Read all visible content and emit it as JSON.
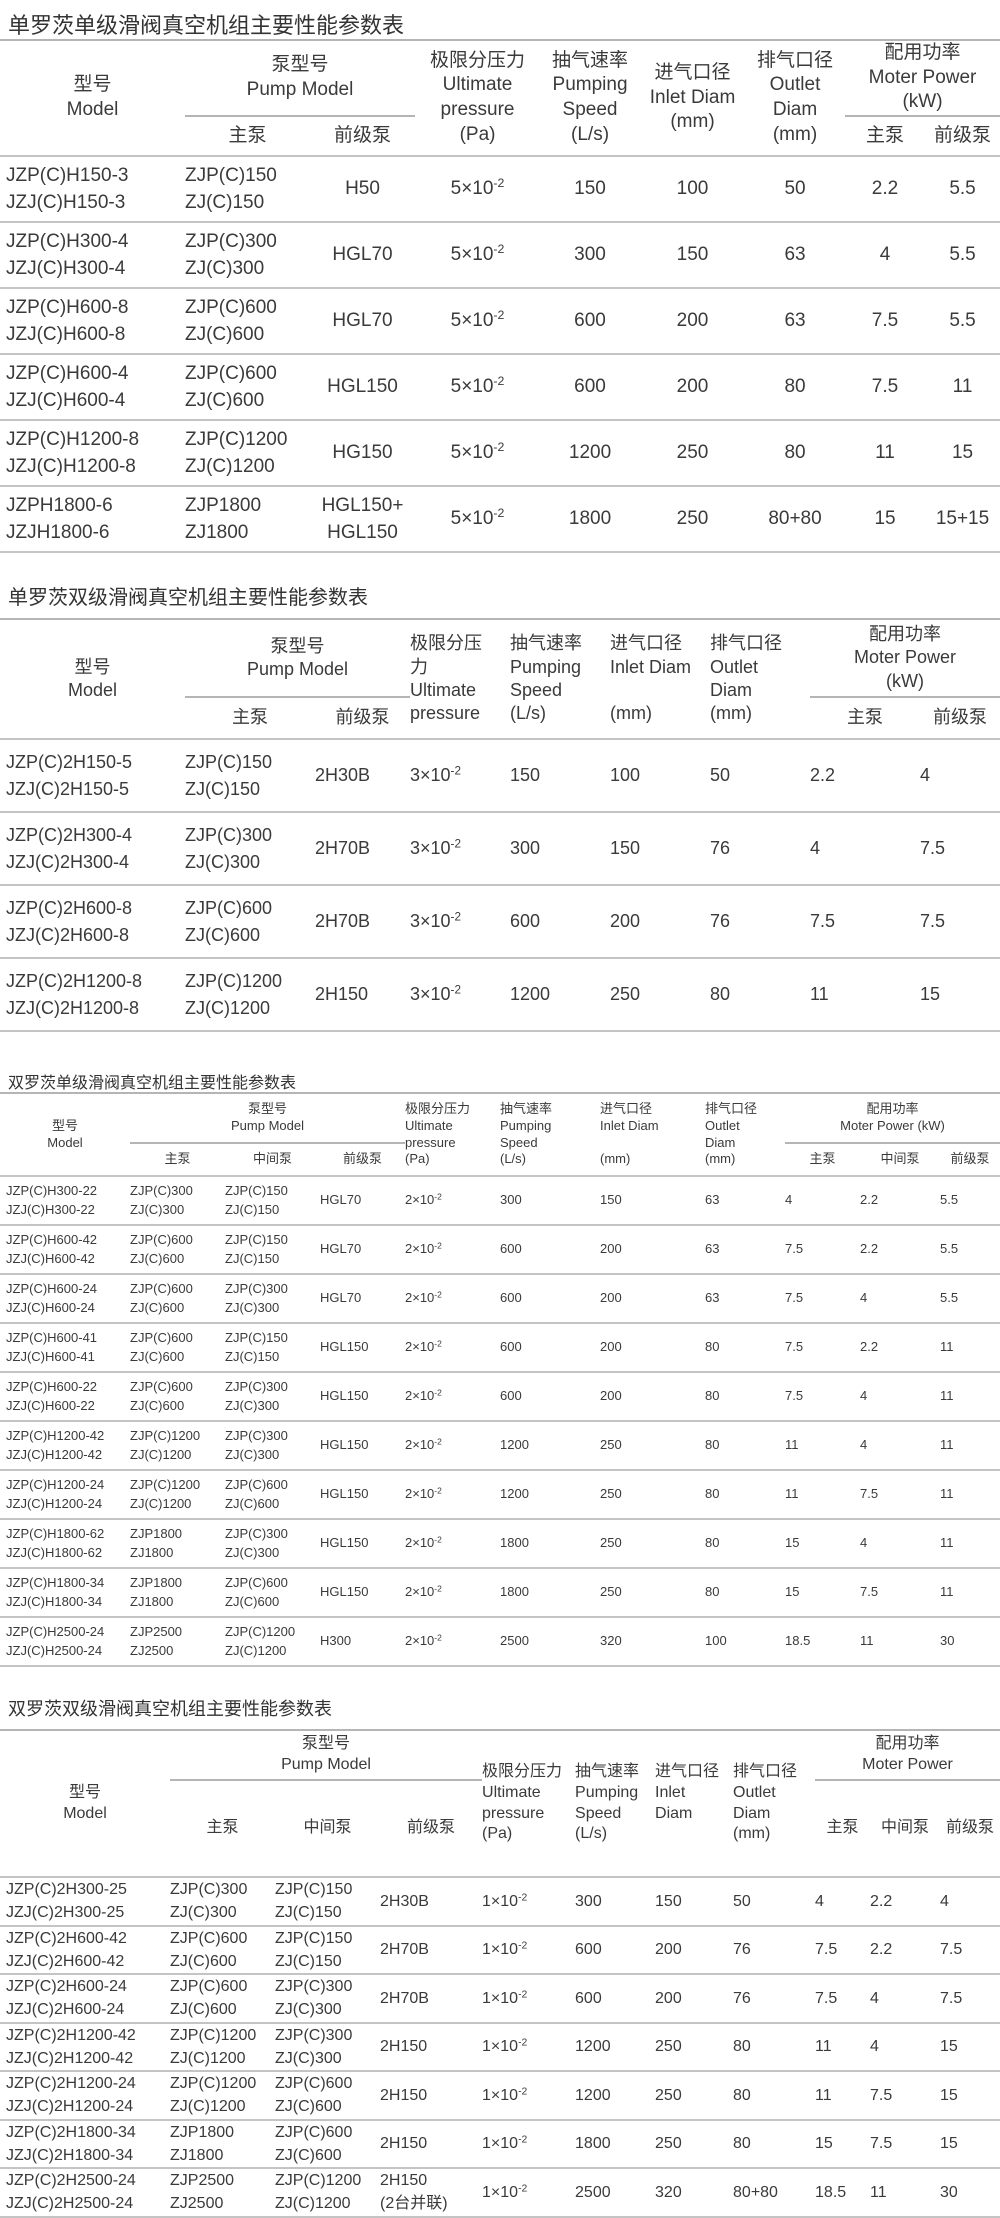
{
  "tables": [
    {
      "title": "单罗茨单级滑阀真空机组主要性能参数表",
      "header": {
        "model": [
          "型号",
          "Model"
        ],
        "pump_model": [
          "泵型号",
          "Pump Model"
        ],
        "pump_sub": [
          "主泵",
          "前级泵"
        ],
        "pressure": [
          "极限分压力",
          "Ultimate",
          "pressure",
          "(Pa)"
        ],
        "speed": [
          "抽气速率",
          "Pumping",
          "Speed",
          "(L/s)"
        ],
        "inlet": [
          "进气口径",
          "Inlet Diam",
          "(mm)"
        ],
        "outlet": [
          "排气口径",
          "Outlet",
          "Diam",
          "(mm)"
        ],
        "power": [
          "配用功率",
          "Moter Power",
          "(kW)"
        ],
        "power_sub": [
          "主泵",
          "前级泵"
        ]
      },
      "rows": [
        [
          [
            "JZP(C)H150-3",
            "JZJ(C)H150-3"
          ],
          [
            "ZJP(C)150",
            "ZJ(C)150"
          ],
          [
            "H50"
          ],
          {
            "base": "5×10",
            "exp": "-2"
          },
          "150",
          "100",
          "50",
          "2.2",
          "5.5"
        ],
        [
          [
            "JZP(C)H300-4",
            "JZJ(C)H300-4"
          ],
          [
            "ZJP(C)300",
            "ZJ(C)300"
          ],
          [
            "HGL70"
          ],
          {
            "base": "5×10",
            "exp": "-2"
          },
          "300",
          "150",
          "63",
          "4",
          "5.5"
        ],
        [
          [
            "JZP(C)H600-8",
            "JZJ(C)H600-8"
          ],
          [
            "ZJP(C)600",
            "ZJ(C)600"
          ],
          [
            "HGL70"
          ],
          {
            "base": "5×10",
            "exp": "-2"
          },
          "600",
          "200",
          "63",
          "7.5",
          "5.5"
        ],
        [
          [
            "JZP(C)H600-4",
            "JZJ(C)H600-4"
          ],
          [
            "ZJP(C)600",
            "ZJ(C)600"
          ],
          [
            "HGL150"
          ],
          {
            "base": "5×10",
            "exp": "-2"
          },
          "600",
          "200",
          "80",
          "7.5",
          "11"
        ],
        [
          [
            "JZP(C)H1200-8",
            "JZJ(C)H1200-8"
          ],
          [
            "ZJP(C)1200",
            "ZJ(C)1200"
          ],
          [
            "HG150"
          ],
          {
            "base": "5×10",
            "exp": "-2"
          },
          "1200",
          "250",
          "80",
          "11",
          "15"
        ],
        [
          [
            "JZPH1800-6",
            "JZJH1800-6"
          ],
          [
            "ZJP1800",
            "ZJ1800"
          ],
          [
            "HGL150+",
            "HGL150"
          ],
          {
            "base": "5×10",
            "exp": "-2"
          },
          "1800",
          "250",
          "80+80",
          "15",
          "15+15"
        ]
      ]
    },
    {
      "title": "单罗茨双级滑阀真空机组主要性能参数表",
      "header": {
        "model": [
          "型号",
          "Model"
        ],
        "pump_model": [
          "泵型号",
          "Pump Model"
        ],
        "pump_sub": [
          "主泵",
          "前级泵"
        ],
        "pressure": [
          "极限分压",
          "力",
          "Ultimate",
          "pressure"
        ],
        "speed": [
          "抽气速率",
          "Pumping",
          "Speed",
          "(L/s)"
        ],
        "inlet": [
          "进气口径",
          "Inlet Diam",
          "",
          "(mm)"
        ],
        "outlet": [
          "排气口径",
          "Outlet",
          "Diam",
          "(mm)"
        ],
        "power": [
          "配用功率",
          "Moter Power",
          "(kW)"
        ],
        "power_sub": [
          "主泵",
          "前级泵"
        ]
      },
      "rows": [
        [
          [
            "JZP(C)2H150-5",
            "JZJ(C)2H150-5"
          ],
          [
            "ZJP(C)150",
            "ZJ(C)150"
          ],
          [
            "2H30B"
          ],
          {
            "base": "3×10",
            "exp": "-2"
          },
          "150",
          "100",
          "50",
          "2.2",
          "4"
        ],
        [
          [
            "JZP(C)2H300-4",
            "JZJ(C)2H300-4"
          ],
          [
            "ZJP(C)300",
            "ZJ(C)300"
          ],
          [
            "2H70B"
          ],
          {
            "base": "3×10",
            "exp": "-2"
          },
          "300",
          "150",
          "76",
          "4",
          "7.5"
        ],
        [
          [
            "JZP(C)2H600-8",
            "JZJ(C)2H600-8"
          ],
          [
            "ZJP(C)600",
            "ZJ(C)600"
          ],
          [
            "2H70B"
          ],
          {
            "base": "3×10",
            "exp": "-2"
          },
          "600",
          "200",
          "76",
          "7.5",
          "7.5"
        ],
        [
          [
            "JZP(C)2H1200-8",
            "JZJ(C)2H1200-8"
          ],
          [
            "ZJP(C)1200",
            "ZJ(C)1200"
          ],
          [
            "2H150"
          ],
          {
            "base": "3×10",
            "exp": "-2"
          },
          "1200",
          "250",
          "80",
          "11",
          "15"
        ]
      ]
    },
    {
      "title": "双罗茨单级滑阀真空机组主要性能参数表",
      "header": {
        "model": [
          "型号",
          "Model"
        ],
        "pump_model": [
          "泵型号",
          "Pump Model"
        ],
        "pump_sub": [
          "主泵",
          "中间泵",
          "前级泵"
        ],
        "pressure": [
          "极限分压力",
          "Ultimate",
          "pressure",
          "(Pa)"
        ],
        "speed": [
          "抽气速率",
          "Pumping",
          "Speed",
          "(L/s)"
        ],
        "inlet": [
          "进气口径",
          "Inlet Diam",
          "",
          "(mm)"
        ],
        "outlet": [
          "排气口径",
          "Outlet",
          "Diam",
          "(mm)"
        ],
        "power": [
          "配用功率",
          "Moter Power  (kW)"
        ],
        "power_sub": [
          "主泵",
          "中间泵",
          "前级泵"
        ]
      },
      "rows": [
        [
          [
            "JZP(C)H300-22",
            "JZJ(C)H300-22"
          ],
          [
            "ZJP(C)300",
            "ZJ(C)300"
          ],
          [
            "ZJP(C)150",
            "ZJ(C)150"
          ],
          [
            "HGL70"
          ],
          {
            "base": "2×10",
            "exp": "-2"
          },
          "300",
          "150",
          "63",
          "4",
          "2.2",
          "5.5"
        ],
        [
          [
            "JZP(C)H600-42",
            "JZJ(C)H600-42"
          ],
          [
            "ZJP(C)600",
            "ZJ(C)600"
          ],
          [
            "ZJP(C)150",
            "ZJ(C)150"
          ],
          [
            "HGL70"
          ],
          {
            "base": "2×10",
            "exp": "-2"
          },
          "600",
          "200",
          "63",
          "7.5",
          "2.2",
          "5.5"
        ],
        [
          [
            "JZP(C)H600-24",
            "JZJ(C)H600-24"
          ],
          [
            "ZJP(C)600",
            "ZJ(C)600"
          ],
          [
            "ZJP(C)300",
            "ZJ(C)300"
          ],
          [
            "HGL70"
          ],
          {
            "base": "2×10",
            "exp": "-2"
          },
          "600",
          "200",
          "63",
          "7.5",
          "4",
          "5.5"
        ],
        [
          [
            "JZP(C)H600-41",
            "JZJ(C)H600-41"
          ],
          [
            "ZJP(C)600",
            "ZJ(C)600"
          ],
          [
            "ZJP(C)150",
            "ZJ(C)150"
          ],
          [
            "HGL150"
          ],
          {
            "base": "2×10",
            "exp": "-2"
          },
          "600",
          "200",
          "80",
          "7.5",
          "2.2",
          "11"
        ],
        [
          [
            "JZP(C)H600-22",
            "JZJ(C)H600-22"
          ],
          [
            "ZJP(C)600",
            "ZJ(C)600"
          ],
          [
            "ZJP(C)300",
            "ZJ(C)300"
          ],
          [
            "HGL150"
          ],
          {
            "base": "2×10",
            "exp": "-2"
          },
          "600",
          "200",
          "80",
          "7.5",
          "4",
          "11"
        ],
        [
          [
            "JZP(C)H1200-42",
            "JZJ(C)H1200-42"
          ],
          [
            "ZJP(C)1200",
            "ZJ(C)1200"
          ],
          [
            "ZJP(C)300",
            "ZJ(C)300"
          ],
          [
            "HGL150"
          ],
          {
            "base": "2×10",
            "exp": "-2"
          },
          "1200",
          "250",
          "80",
          "11",
          "4",
          "11"
        ],
        [
          [
            "JZP(C)H1200-24",
            "JZJ(C)H1200-24"
          ],
          [
            "ZJP(C)1200",
            "ZJ(C)1200"
          ],
          [
            "ZJP(C)600",
            "ZJ(C)600"
          ],
          [
            "HGL150"
          ],
          {
            "base": "2×10",
            "exp": "-2"
          },
          "1200",
          "250",
          "80",
          "11",
          "7.5",
          "11"
        ],
        [
          [
            "JZP(C)H1800-62",
            "JZJ(C)H1800-62"
          ],
          [
            "ZJP1800",
            "ZJ1800"
          ],
          [
            "ZJP(C)300",
            "ZJ(C)300"
          ],
          [
            "HGL150"
          ],
          {
            "base": "2×10",
            "exp": "-2"
          },
          "1800",
          "250",
          "80",
          "15",
          "4",
          "11"
        ],
        [
          [
            "JZP(C)H1800-34",
            "JZJ(C)H1800-34"
          ],
          [
            "ZJP1800",
            "ZJ1800"
          ],
          [
            "ZJP(C)600",
            "ZJ(C)600"
          ],
          [
            "HGL150"
          ],
          {
            "base": "2×10",
            "exp": "-2"
          },
          "1800",
          "250",
          "80",
          "15",
          "7.5",
          "11"
        ],
        [
          [
            "JZP(C)H2500-24",
            "JZJ(C)H2500-24"
          ],
          [
            "ZJP2500",
            "ZJ2500"
          ],
          [
            "ZJP(C)1200",
            "ZJ(C)1200"
          ],
          [
            "H300"
          ],
          {
            "base": "2×10",
            "exp": "-2"
          },
          "2500",
          "320",
          "100",
          "18.5",
          "11",
          "30"
        ]
      ]
    },
    {
      "title": "双罗茨双级滑阀真空机组主要性能参数表",
      "header": {
        "model": [
          "型号",
          "Model"
        ],
        "pump_model": [
          "泵型号",
          "Pump Model"
        ],
        "pump_sub": [
          "主泵",
          "中间泵",
          "前级泵"
        ],
        "pressure": [
          "极限分压力",
          "Ultimate",
          "pressure",
          "(Pa)"
        ],
        "speed": [
          "抽气速率",
          "Pumping",
          "Speed",
          "(L/s)"
        ],
        "inlet": [
          "进气口径",
          "Inlet",
          "Diam",
          ""
        ],
        "outlet": [
          "排气口径",
          "Outlet",
          "Diam",
          "(mm)"
        ],
        "power": [
          "配用功率",
          "Moter Power"
        ],
        "power_sub": [
          "主泵",
          "中间泵",
          "前级泵"
        ]
      },
      "rows": [
        [
          [
            "JZP(C)2H300-25",
            "JZJ(C)2H300-25"
          ],
          [
            "ZJP(C)300",
            "ZJ(C)300"
          ],
          [
            "ZJP(C)150",
            "ZJ(C)150"
          ],
          [
            "2H30B"
          ],
          {
            "base": "1×10",
            "exp": "-2"
          },
          "300",
          "150",
          "50",
          "4",
          "2.2",
          "4"
        ],
        [
          [
            "JZP(C)2H600-42",
            "JZJ(C)2H600-42"
          ],
          [
            "ZJP(C)600",
            "ZJ(C)600"
          ],
          [
            "ZJP(C)150",
            "ZJ(C)150"
          ],
          [
            "2H70B"
          ],
          {
            "base": "1×10",
            "exp": "-2"
          },
          "600",
          "200",
          "76",
          "7.5",
          "2.2",
          "7.5"
        ],
        [
          [
            "JZP(C)2H600-24",
            "JZJ(C)2H600-24"
          ],
          [
            "ZJP(C)600",
            "ZJ(C)600"
          ],
          [
            "ZJP(C)300",
            "ZJ(C)300"
          ],
          [
            "2H70B"
          ],
          {
            "base": "1×10",
            "exp": "-2"
          },
          "600",
          "200",
          "76",
          "7.5",
          "4",
          "7.5"
        ],
        [
          [
            "JZP(C)2H1200-42",
            "JZJ(C)2H1200-42"
          ],
          [
            "ZJP(C)1200",
            "ZJ(C)1200"
          ],
          [
            "ZJP(C)300",
            "ZJ(C)300"
          ],
          [
            "2H150"
          ],
          {
            "base": "1×10",
            "exp": "-2"
          },
          "1200",
          "250",
          "80",
          "11",
          "4",
          "15"
        ],
        [
          [
            "JZP(C)2H1200-24",
            "JZJ(C)2H1200-24"
          ],
          [
            "ZJP(C)1200",
            "ZJ(C)1200"
          ],
          [
            "ZJP(C)600",
            "ZJ(C)600"
          ],
          [
            "2H150"
          ],
          {
            "base": "1×10",
            "exp": "-2"
          },
          "1200",
          "250",
          "80",
          "11",
          "7.5",
          "15"
        ],
        [
          [
            "JZP(C)2H1800-34",
            "JZJ(C)2H1800-34"
          ],
          [
            "ZJP1800",
            "ZJ1800"
          ],
          [
            "ZJP(C)600",
            "ZJ(C)600"
          ],
          [
            "2H150"
          ],
          {
            "base": "1×10",
            "exp": "-2"
          },
          "1800",
          "250",
          "80",
          "15",
          "7.5",
          "15"
        ],
        [
          [
            "JZP(C)2H2500-24",
            "JZJ(C)2H2500-24"
          ],
          [
            "ZJP2500",
            "ZJ2500"
          ],
          [
            "ZJP(C)1200",
            "ZJ(C)1200"
          ],
          [
            "2H150",
            "(2台并联)"
          ],
          {
            "base": "1×10",
            "exp": "-2"
          },
          "2500",
          "320",
          "80+80",
          "18.5",
          "11",
          "30"
        ]
      ]
    }
  ]
}
